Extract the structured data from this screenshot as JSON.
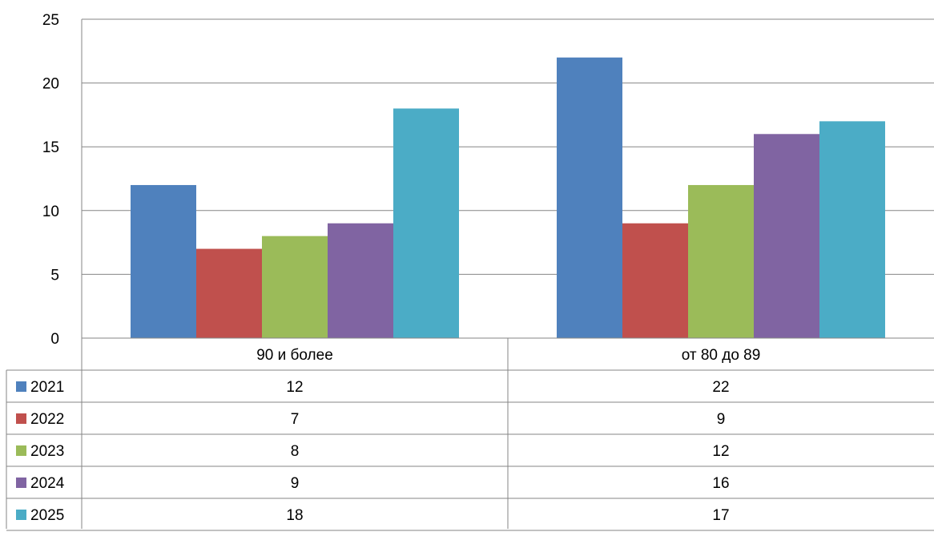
{
  "chart_data": {
    "type": "bar",
    "categories": [
      "90 и более",
      "от 80 до 89"
    ],
    "series": [
      {
        "name": "2021",
        "values": [
          12,
          22
        ],
        "color": "#4F81BD"
      },
      {
        "name": "2022",
        "values": [
          7,
          9
        ],
        "color": "#C0504D"
      },
      {
        "name": "2023",
        "values": [
          8,
          12
        ],
        "color": "#9BBB59"
      },
      {
        "name": "2024",
        "values": [
          9,
          16
        ],
        "color": "#8064A2"
      },
      {
        "name": "2025",
        "values": [
          18,
          17
        ],
        "color": "#4BACC6"
      }
    ],
    "title": "",
    "xlabel": "",
    "ylabel": "",
    "ylim": [
      0,
      25
    ],
    "yticks": [
      "0",
      "5",
      "10",
      "15",
      "20",
      "25"
    ],
    "grid": true,
    "legend": "data-table"
  }
}
